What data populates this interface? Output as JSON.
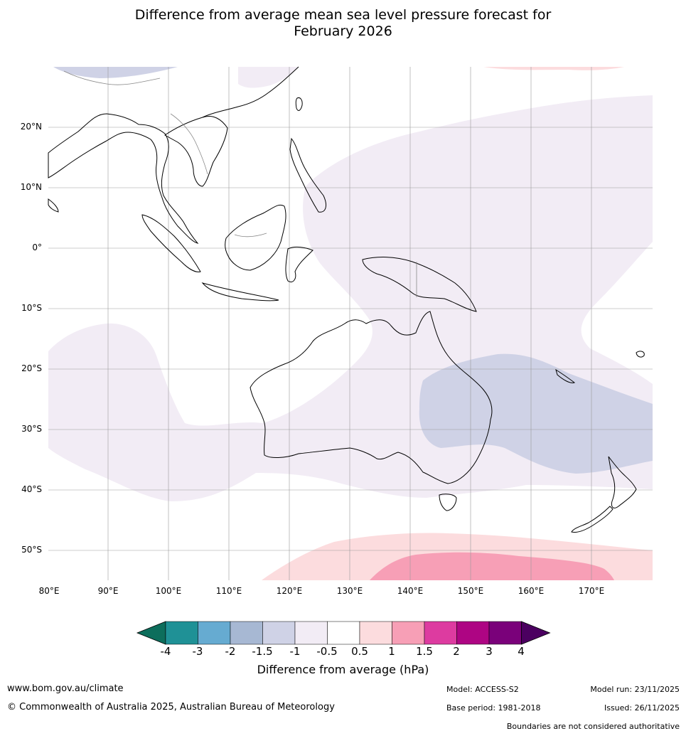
{
  "title_line1": "Difference from average mean sea level pressure forecast for",
  "title_line2": "February 2026",
  "lat_labels": [
    "20°N",
    "10°N",
    "0°",
    "10°S",
    "20°S",
    "30°S",
    "40°S",
    "50°S"
  ],
  "lon_labels": [
    "80°E",
    "90°E",
    "100°E",
    "110°E",
    "120°E",
    "130°E",
    "140°E",
    "150°E",
    "160°E",
    "170°E"
  ],
  "colorbar": {
    "ticks": [
      "-4",
      "-3",
      "-2",
      "-1.5",
      "-1",
      "-0.5",
      "0.5",
      "1",
      "1.5",
      "2",
      "3",
      "4"
    ],
    "colors": [
      "#0d6e5c",
      "#1f9196",
      "#66abd1",
      "#a7b8d3",
      "#cfd2e6",
      "#f2ecf5",
      "#ffffff",
      "#fcdcde",
      "#f79fb6",
      "#dd3ba0",
      "#ae0583",
      "#7a017a",
      "#4b0060"
    ],
    "title": "Difference from average (hPa)"
  },
  "footer": {
    "url": "www.bom.gov.au/climate",
    "copyright": "© Commonwealth of Australia 2025, Australian Bureau of Meteorology",
    "model": "Model: ACCESS-S2",
    "base_period": "Base period: 1981-2018",
    "model_run": "Model run: 23/11/2025",
    "issued": "Issued: 26/11/2025",
    "disclaimer": "Boundaries are not considered authoritative"
  }
}
